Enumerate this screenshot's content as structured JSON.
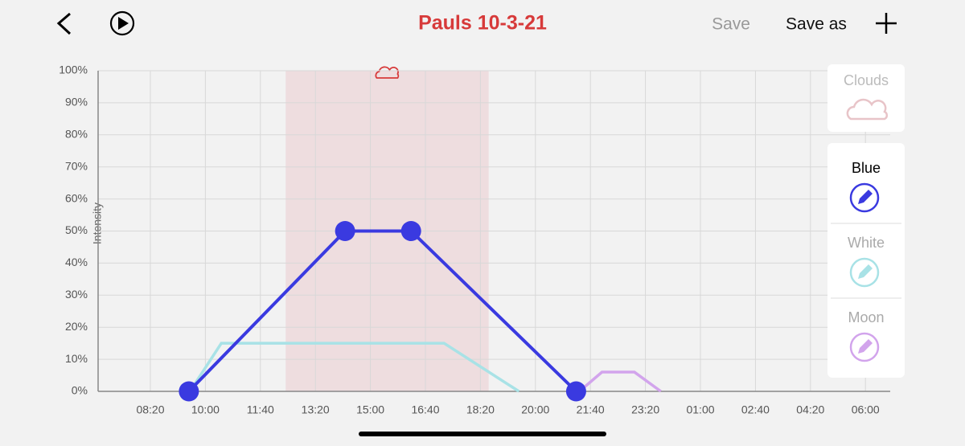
{
  "header": {
    "title": "Pauls 10-3-21",
    "save": "Save",
    "save_as": "Save as"
  },
  "chart_data": {
    "type": "line",
    "y_label": "Intensity",
    "xlim": [
      405,
      1845
    ],
    "xticks": [
      {
        "value": 500,
        "label": "08:20"
      },
      {
        "value": 600,
        "label": "10:00"
      },
      {
        "value": 700,
        "label": "11:40"
      },
      {
        "value": 800,
        "label": "13:20"
      },
      {
        "value": 900,
        "label": "15:00"
      },
      {
        "value": 1000,
        "label": "16:40"
      },
      {
        "value": 1100,
        "label": "18:20"
      },
      {
        "value": 1200,
        "label": "20:00"
      },
      {
        "value": 1300,
        "label": "21:40"
      },
      {
        "value": 1400,
        "label": "23:20"
      },
      {
        "value": 1500,
        "label": "01:00"
      },
      {
        "value": 1600,
        "label": "02:40"
      },
      {
        "value": 1700,
        "label": "04:20"
      },
      {
        "value": 1800,
        "label": "06:00"
      }
    ],
    "ylim": [
      0,
      100
    ],
    "yticks": [
      {
        "value": 0,
        "label": "0%"
      },
      {
        "value": 10,
        "label": "10%"
      },
      {
        "value": 20,
        "label": "20%"
      },
      {
        "value": 30,
        "label": "30%"
      },
      {
        "value": 40,
        "label": "40%"
      },
      {
        "value": 50,
        "label": "50%"
      },
      {
        "value": 60,
        "label": "60%"
      },
      {
        "value": 70,
        "label": "70%"
      },
      {
        "value": 80,
        "label": "80%"
      },
      {
        "value": 90,
        "label": "90%"
      },
      {
        "value": 100,
        "label": "100%"
      }
    ],
    "grid": true,
    "band": {
      "name": "Clouds",
      "color": "#e8c4c8",
      "x": [
        746,
        1115
      ]
    },
    "series": [
      {
        "name": "Blue",
        "color": "#3a3ae0",
        "markers": true,
        "x": [
          570,
          854,
          974,
          1274
        ],
        "values": [
          0,
          50,
          50,
          0
        ]
      },
      {
        "name": "White",
        "color": "#a8e2e6",
        "markers": false,
        "x": [
          572,
          629,
          1034,
          1170
        ],
        "values": [
          0,
          15,
          15,
          0
        ]
      },
      {
        "name": "Moon",
        "color": "#d2a4ec",
        "markers": false,
        "x": [
          1280,
          1321,
          1380,
          1428
        ],
        "values": [
          0,
          6,
          6,
          0
        ]
      }
    ]
  }
}
